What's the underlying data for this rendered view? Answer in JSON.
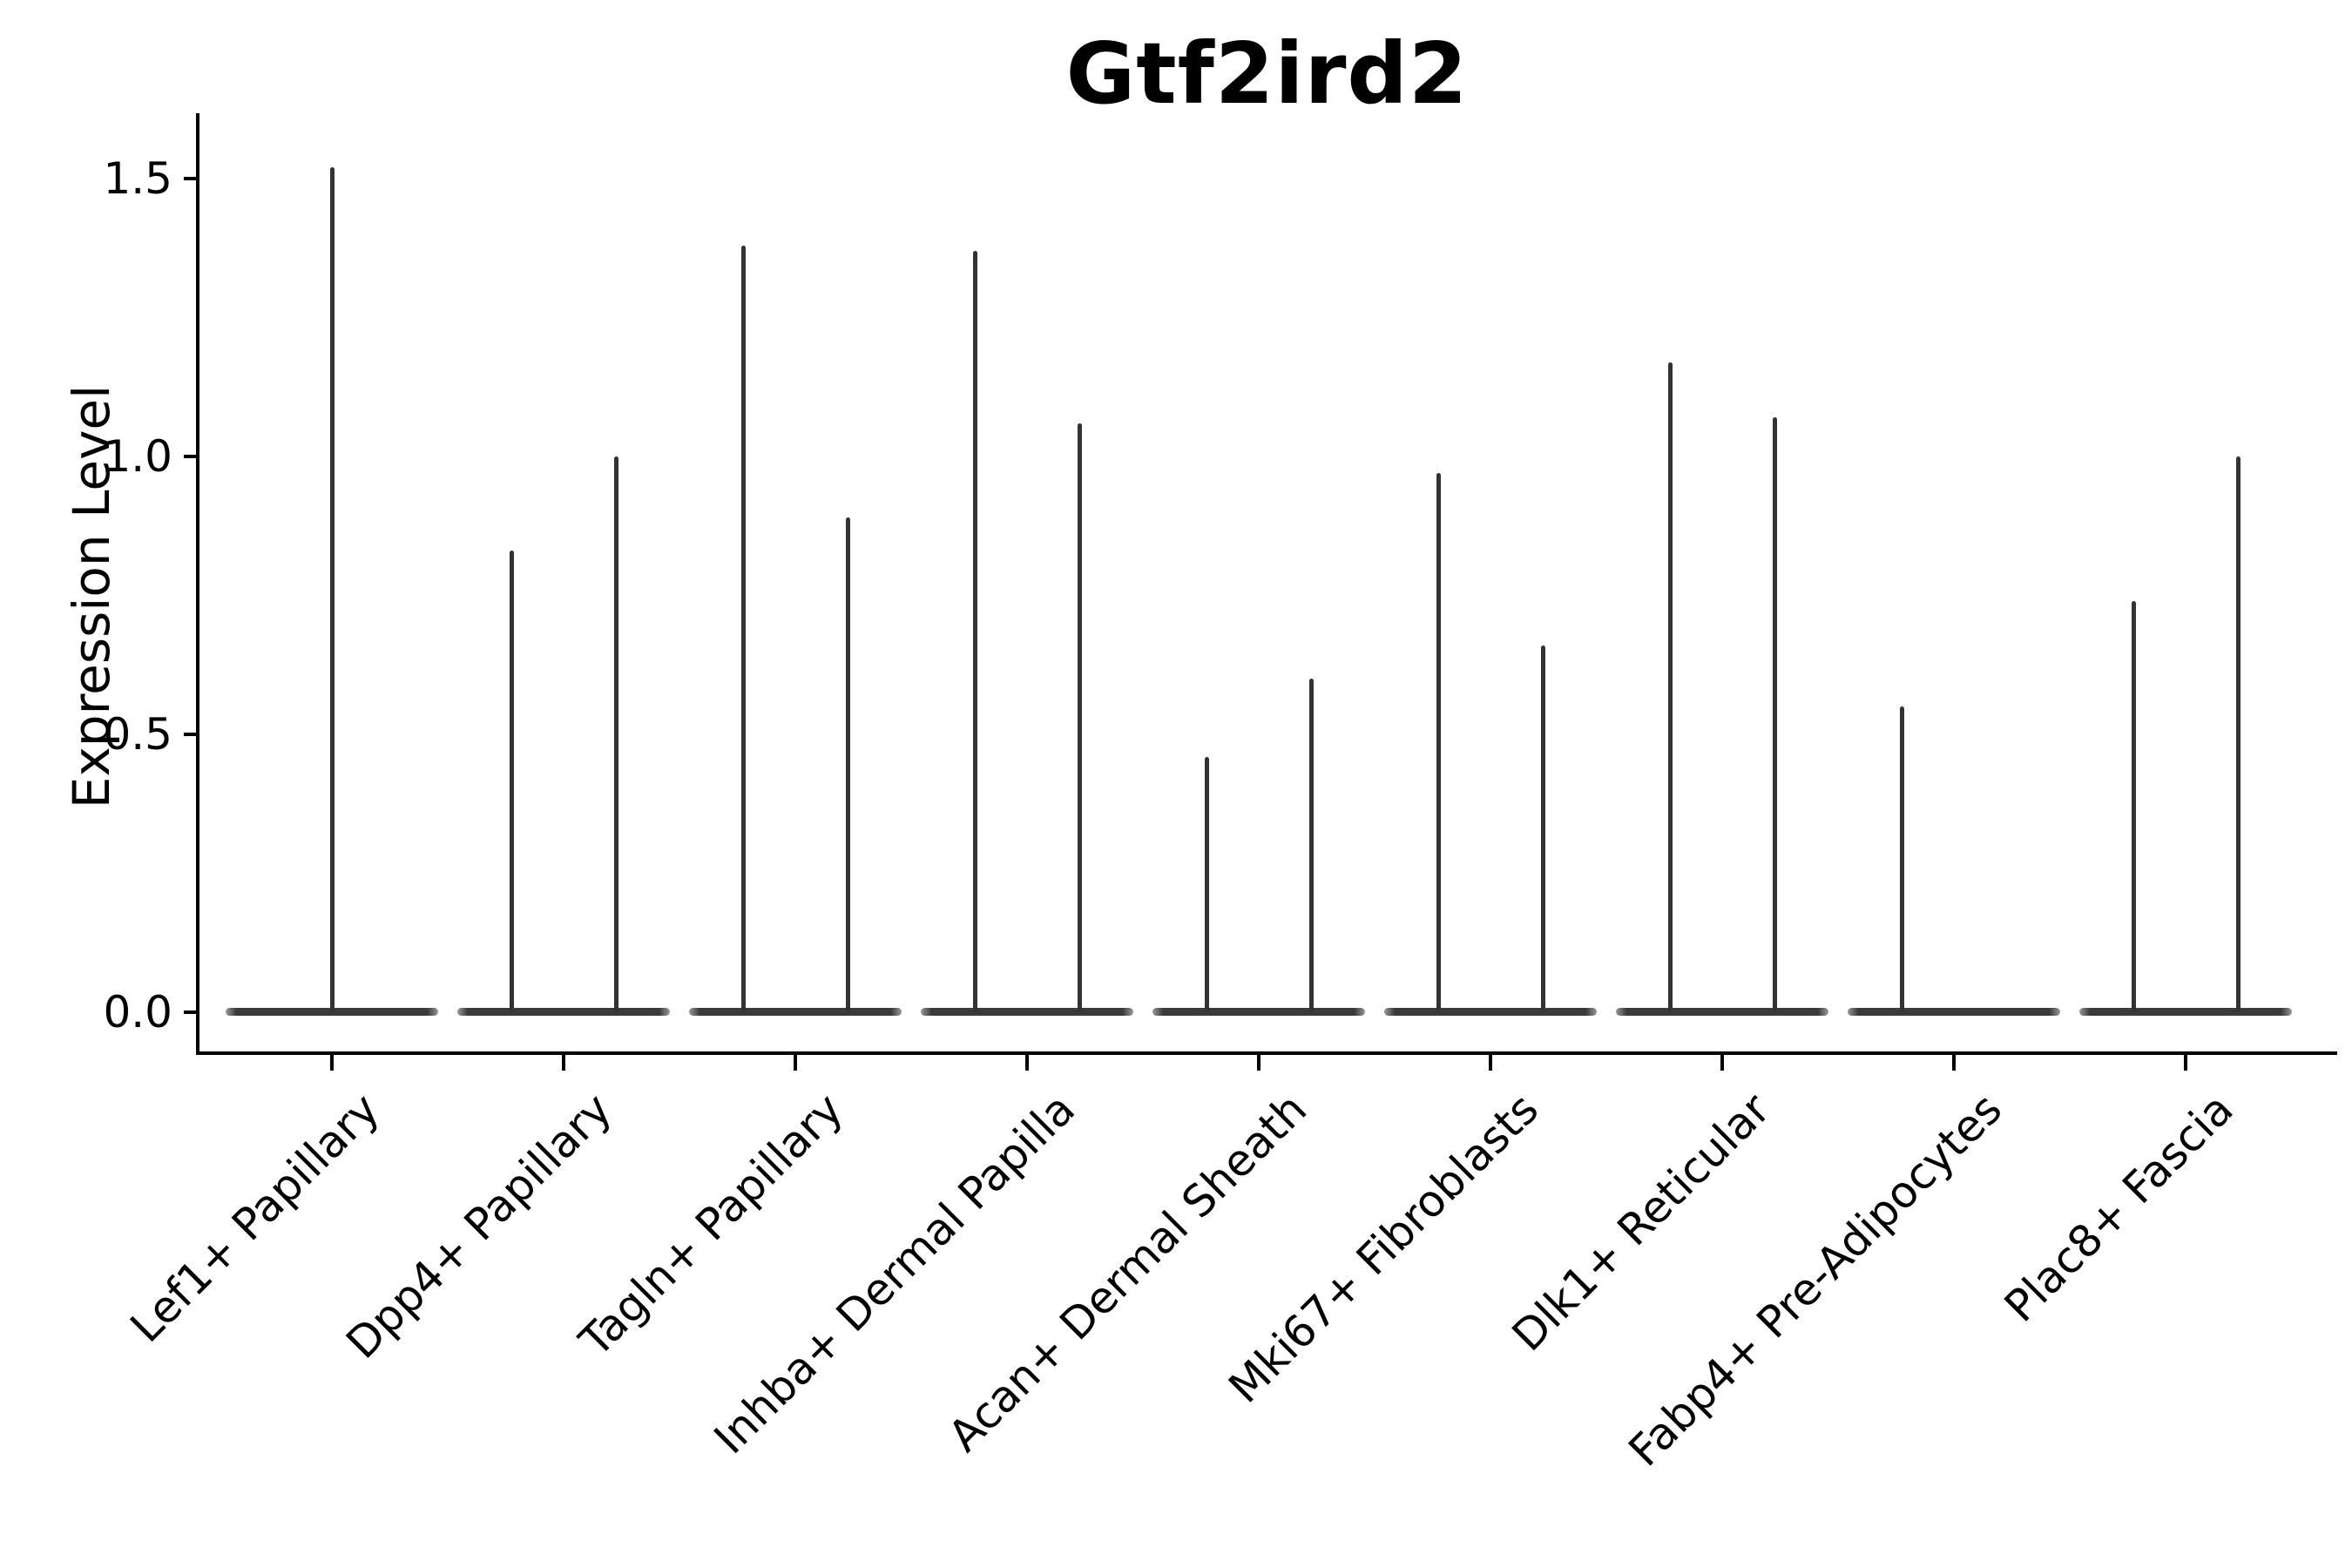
{
  "figure": {
    "background": "#ffffff",
    "text_color": "#000000",
    "violin_color": "#333333"
  },
  "chart_data": {
    "type": "violin",
    "title": "Gtf2ird2",
    "ylabel": "Expression Level",
    "xlabel": "",
    "yticks": [
      "0.0",
      "0.5",
      "1.0",
      "1.5"
    ],
    "ytick_values": [
      0,
      0.5,
      1.0,
      1.5
    ],
    "ylim": [
      -0.07,
      1.62
    ],
    "grid": false,
    "legend": "none",
    "description": "Single-cell expression violin plot; nearly all mass at 0 with thin spikes up to each violin's maximum expression value",
    "groups": [
      {
        "label": "Lef1+ Papillary",
        "violins": [
          {
            "dodge": "center",
            "max_expression": 1.52
          }
        ]
      },
      {
        "label": "Dpp4+ Papillary",
        "violins": [
          {
            "dodge": "left",
            "max_expression": 0.83
          },
          {
            "dodge": "right",
            "max_expression": 1.0
          }
        ]
      },
      {
        "label": "Tagln+ Papillary",
        "violins": [
          {
            "dodge": "left",
            "max_expression": 1.38
          },
          {
            "dodge": "right",
            "max_expression": 0.89
          }
        ]
      },
      {
        "label": "Inhba+ Dermal Papilla",
        "violins": [
          {
            "dodge": "left",
            "max_expression": 1.37
          },
          {
            "dodge": "right",
            "max_expression": 1.06
          }
        ]
      },
      {
        "label": "Acan+ Dermal Sheath",
        "violins": [
          {
            "dodge": "left",
            "max_expression": 0.46
          },
          {
            "dodge": "right",
            "max_expression": 0.6
          }
        ]
      },
      {
        "label": "Mki67+ Fibroblasts",
        "violins": [
          {
            "dodge": "left",
            "max_expression": 0.97
          },
          {
            "dodge": "right",
            "max_expression": 0.66
          }
        ]
      },
      {
        "label": "Dlk1+ Reticular",
        "violins": [
          {
            "dodge": "left",
            "max_expression": 1.17
          },
          {
            "dodge": "right",
            "max_expression": 1.07
          }
        ]
      },
      {
        "label": "Fabp4+ Pre-Adipocytes",
        "violins": [
          {
            "dodge": "left",
            "max_expression": 0.55
          }
        ]
      },
      {
        "label": "Plac8+ Fascia",
        "violins": [
          {
            "dodge": "left",
            "max_expression": 0.74
          },
          {
            "dodge": "right",
            "max_expression": 1.0
          }
        ]
      }
    ]
  }
}
